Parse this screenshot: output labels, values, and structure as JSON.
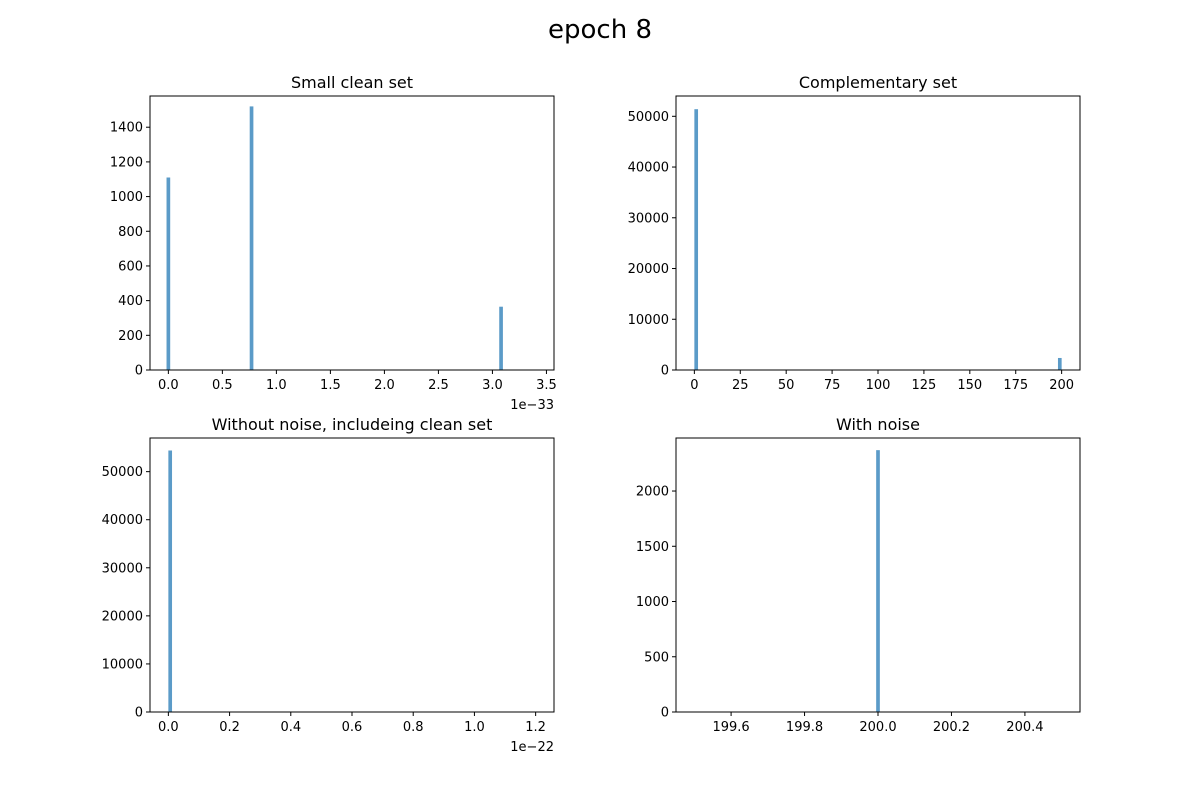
{
  "figure": {
    "title": "epoch 8"
  },
  "colors": {
    "bar": "#5b9bc8",
    "axes": "#000000",
    "background": "#ffffff"
  },
  "chart_data": [
    {
      "type": "bar",
      "title": "Small clean set",
      "xlabel": "",
      "ylabel": "",
      "x_offset_label": "1e−33",
      "xlim": [
        -0.17,
        3.57
      ],
      "ylim": [
        0,
        1580
      ],
      "xticks": [
        0.0,
        0.5,
        1.0,
        1.5,
        2.0,
        2.5,
        3.0,
        3.5
      ],
      "xtick_labels": [
        "0.0",
        "0.5",
        "1.0",
        "1.5",
        "2.0",
        "2.5",
        "3.0",
        "3.5"
      ],
      "yticks": [
        0,
        200,
        400,
        600,
        800,
        1000,
        1200,
        1400
      ],
      "ytick_labels": [
        "0",
        "200",
        "400",
        "600",
        "800",
        "1000",
        "1200",
        "1400"
      ],
      "bin_width": 0.034,
      "bins": [
        {
          "x": 0.0,
          "count": 1110
        },
        {
          "x": 0.77,
          "count": 1520
        },
        {
          "x": 3.08,
          "count": 365
        }
      ],
      "grid": false,
      "legend": "none"
    },
    {
      "type": "bar",
      "title": "Complementary set",
      "xlabel": "",
      "ylabel": "",
      "x_offset_label": "",
      "xlim": [
        -10,
        210
      ],
      "ylim": [
        0,
        54000
      ],
      "xticks": [
        0,
        25,
        50,
        75,
        100,
        125,
        150,
        175,
        200
      ],
      "xtick_labels": [
        "0",
        "25",
        "50",
        "75",
        "100",
        "125",
        "150",
        "175",
        "200"
      ],
      "yticks": [
        0,
        10000,
        20000,
        30000,
        40000,
        50000
      ],
      "ytick_labels": [
        "0",
        "10000",
        "20000",
        "30000",
        "40000",
        "50000"
      ],
      "bin_width": 2.0,
      "bins": [
        {
          "x": 1.0,
          "count": 51400
        },
        {
          "x": 199.0,
          "count": 2370
        }
      ],
      "grid": false,
      "legend": "none"
    },
    {
      "type": "bar",
      "title": "Without noise, includeing clean set",
      "xlabel": "",
      "ylabel": "",
      "x_offset_label": "1e−22",
      "xlim": [
        -0.06,
        1.26
      ],
      "ylim": [
        0,
        57000
      ],
      "xticks": [
        0.0,
        0.2,
        0.4,
        0.6,
        0.8,
        1.0,
        1.2
      ],
      "xtick_labels": [
        "0.0",
        "0.2",
        "0.4",
        "0.6",
        "0.8",
        "1.0",
        "1.2"
      ],
      "yticks": [
        0,
        10000,
        20000,
        30000,
        40000,
        50000
      ],
      "ytick_labels": [
        "0",
        "10000",
        "20000",
        "30000",
        "40000",
        "50000"
      ],
      "bin_width": 0.012,
      "bins": [
        {
          "x": 0.006,
          "count": 54400
        }
      ],
      "grid": false,
      "legend": "none"
    },
    {
      "type": "bar",
      "title": "With noise",
      "xlabel": "",
      "ylabel": "",
      "x_offset_label": "",
      "xlim": [
        199.45,
        200.55
      ],
      "ylim": [
        0,
        2480
      ],
      "xticks": [
        199.6,
        199.8,
        200.0,
        200.2,
        200.4
      ],
      "xtick_labels": [
        "199.6",
        "199.8",
        "200.0",
        "200.2",
        "200.4"
      ],
      "yticks": [
        0,
        500,
        1000,
        1500,
        2000
      ],
      "ytick_labels": [
        "0",
        "500",
        "1000",
        "1500",
        "2000"
      ],
      "bin_width": 0.01,
      "bins": [
        {
          "x": 200.0,
          "count": 2370
        }
      ],
      "grid": false,
      "legend": "none"
    }
  ]
}
